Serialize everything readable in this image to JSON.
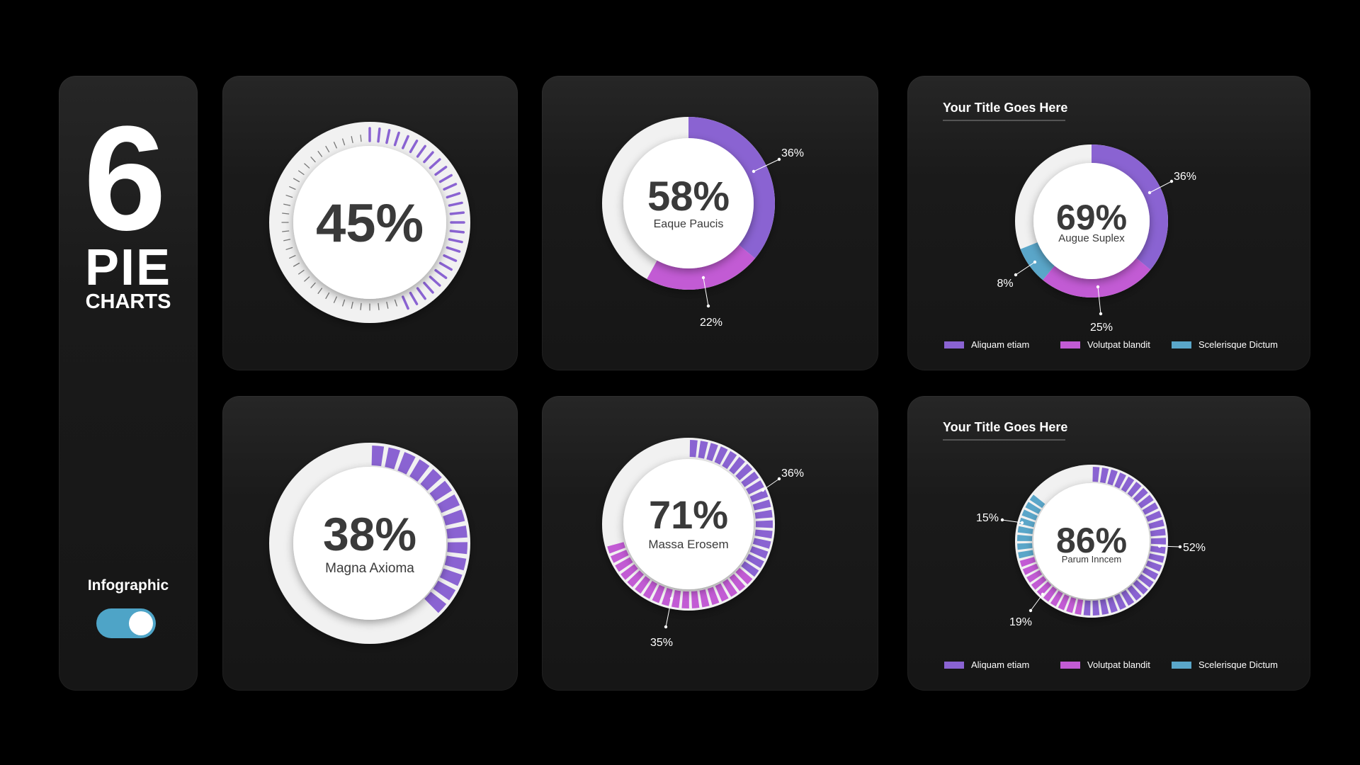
{
  "sidebar": {
    "number": "6",
    "word1": "PIE",
    "word2": "CHARTS",
    "toggle_label": "Infographic"
  },
  "colors": {
    "purple": "#8a63d2",
    "magenta": "#c25bd4",
    "blue": "#5aa6c9",
    "ring": "#f1f1f1",
    "text": "#3a3a3a"
  },
  "chart_data": [
    {
      "type": "pie",
      "style": "tick-ring",
      "center_value": "45%",
      "value": 45,
      "subtitle": ""
    },
    {
      "type": "pie",
      "style": "donut",
      "center_value": "58%",
      "subtitle": "Eaque Paucis",
      "slices": [
        {
          "value": 36,
          "label": "36%",
          "color": "#8a63d2"
        },
        {
          "value": 22,
          "label": "22%",
          "color": "#c25bd4"
        }
      ]
    },
    {
      "type": "pie",
      "style": "donut",
      "title": "Your Title Goes Here",
      "center_value": "69%",
      "subtitle": "Augue Suplex",
      "slices": [
        {
          "value": 36,
          "label": "36%",
          "color": "#8a63d2"
        },
        {
          "value": 25,
          "label": "25%",
          "color": "#c25bd4"
        },
        {
          "value": 8,
          "label": "8%",
          "color": "#5aa6c9"
        }
      ],
      "legend": [
        "Aliquam etiam",
        "Volutpat blandit",
        "Scelerisque Dictum"
      ]
    },
    {
      "type": "pie",
      "style": "segmented",
      "center_value": "38%",
      "subtitle": "Magna Axioma",
      "slices": [
        {
          "value": 38,
          "color": "#8a63d2"
        }
      ]
    },
    {
      "type": "pie",
      "style": "segmented",
      "center_value": "71%",
      "subtitle": "Massa Erosem",
      "slices": [
        {
          "value": 36,
          "label": "36%",
          "color": "#8a63d2"
        },
        {
          "value": 35,
          "label": "35%",
          "color": "#c25bd4"
        }
      ]
    },
    {
      "type": "pie",
      "style": "segmented",
      "title": "Your Title Goes Here",
      "center_value": "86%",
      "subtitle": "Parum Inncem",
      "slices": [
        {
          "value": 52,
          "label": "52%",
          "color": "#8a63d2"
        },
        {
          "value": 19,
          "label": "19%",
          "color": "#c25bd4"
        },
        {
          "value": 15,
          "label": "15%",
          "color": "#5aa6c9"
        }
      ],
      "legend": [
        "Aliquam etiam",
        "Volutpat blandit",
        "Scelerisque Dictum"
      ]
    }
  ]
}
